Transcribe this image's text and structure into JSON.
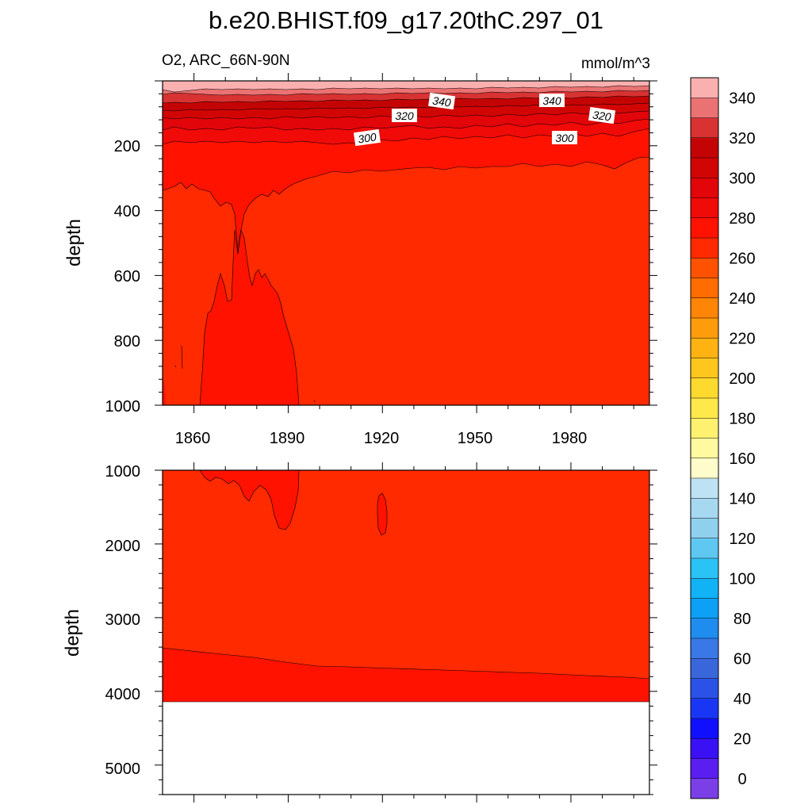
{
  "chart_data": {
    "type": "contour",
    "title": "b.e20.BHIST.f09_g17.20thC.297_01",
    "subtitle_left": "O2, ARC_66N-90N",
    "subtitle_right": "mmol/m^3",
    "x_range": [
      1850,
      2005
    ],
    "x_ticks": [
      "1860",
      "1890",
      "1920",
      "1950",
      "1980"
    ],
    "panels": [
      {
        "name": "upper",
        "ylabel": "depth",
        "ylim": [
          0,
          1000
        ],
        "y_ticks": [
          "200",
          "400",
          "600",
          "800",
          "1000"
        ],
        "contour_labels": [
          "340",
          "340",
          "320",
          "320",
          "300",
          "300"
        ]
      },
      {
        "name": "lower",
        "ylabel": "depth",
        "ylim": [
          1000,
          5400
        ],
        "y_ticks": [
          "1000",
          "2000",
          "3000",
          "4000",
          "5000"
        ]
      }
    ],
    "colorbar": {
      "levels": [
        0,
        10,
        20,
        30,
        40,
        50,
        60,
        70,
        80,
        90,
        100,
        110,
        120,
        130,
        140,
        150,
        160,
        170,
        180,
        190,
        200,
        210,
        220,
        230,
        240,
        250,
        260,
        270,
        280,
        290,
        300,
        310,
        320,
        330,
        340,
        350
      ],
      "labels": [
        "0",
        "20",
        "40",
        "60",
        "80",
        "100",
        "120",
        "140",
        "160",
        "180",
        "200",
        "220",
        "240",
        "260",
        "280",
        "300",
        "320",
        "340"
      ],
      "colors": [
        "#7b3fe8",
        "#5a1ef0",
        "#3a10f5",
        "#1010ff",
        "#1a36f5",
        "#2a52e6",
        "#3a66dc",
        "#3a78e8",
        "#1f8cf0",
        "#0da0f7",
        "#12b2f7",
        "#2ac3f5",
        "#5ec8f3",
        "#8fd0ee",
        "#a6d8f0",
        "#bde2f3",
        "#fffccb",
        "#fff9a0",
        "#fff170",
        "#ffe84a",
        "#ffda2e",
        "#ffc71e",
        "#ffb313",
        "#ff9c0c",
        "#ff8506",
        "#ff6c02",
        "#ff5200",
        "#ff2a00",
        "#ff1200",
        "#f00a08",
        "#e2050a",
        "#d20505",
        "#c40404",
        "#d83232",
        "#ea7272",
        "#fbb0b0"
      ]
    }
  }
}
